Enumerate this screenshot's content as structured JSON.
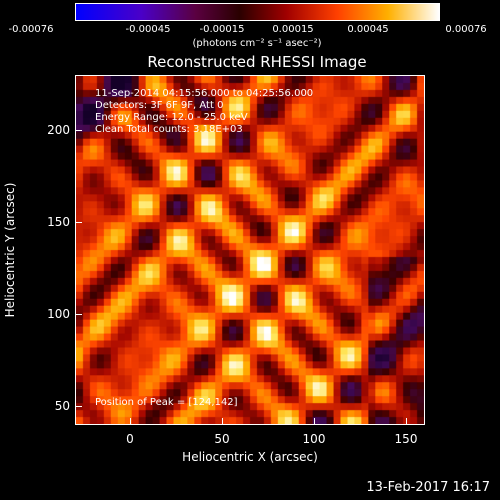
{
  "colorbar": {
    "ticks": [
      "-0.00076",
      "-0.00045",
      "-0.00015",
      "0.00015",
      "0.00045",
      "0.00076"
    ],
    "unit_label": "(photons cm⁻² s⁻¹ asec⁻²)"
  },
  "title": "Reconstructed RHESSI Image",
  "info": {
    "time_range": "11-Sep-2014 04:15:56.000 to 04:25:56.000",
    "detectors": "Detectors: 3F 6F 9F, Att 0",
    "energy_range": "Energy Range: 12.0 - 25.0 keV",
    "clean_counts": "Clean     Total counts: 3.18E+03"
  },
  "peak": "Position of Peak = [124,142]",
  "axes": {
    "xlabel": "Heliocentric X (arcsec)",
    "ylabel": "Heliocentric Y (arcsec)",
    "x_ticks": [
      "0",
      "50",
      "100",
      "150"
    ],
    "y_ticks": [
      "50",
      "100",
      "150",
      "200"
    ]
  },
  "footer": {
    "date": "13-Feb-2017 16:17"
  },
  "colors": {
    "background": "#000000",
    "text": "#ffffff"
  }
}
